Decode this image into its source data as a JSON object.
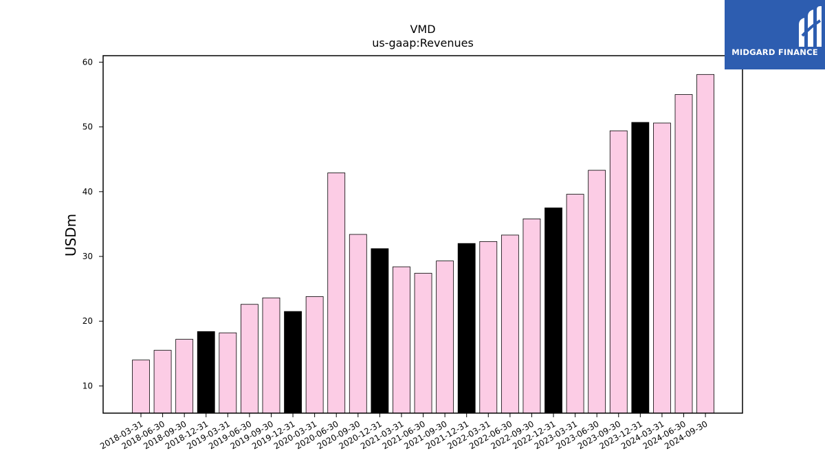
{
  "chart_data": {
    "type": "bar",
    "title": "VMD",
    "subtitle": "us-gaap:Revenues",
    "xlabel": "",
    "ylabel": "USDm",
    "ylim": [
      5.8,
      61
    ],
    "yticks": [
      10,
      20,
      30,
      40,
      50,
      60
    ],
    "categories": [
      "2018-03-31",
      "2018-06-30",
      "2018-09-30",
      "2018-12-31",
      "2019-03-31",
      "2019-06-30",
      "2019-09-30",
      "2019-12-31",
      "2020-03-31",
      "2020-06-30",
      "2020-09-30",
      "2020-12-31",
      "2021-03-31",
      "2021-06-30",
      "2021-09-30",
      "2021-12-31",
      "2022-03-31",
      "2022-06-30",
      "2022-09-30",
      "2022-12-31",
      "2023-03-31",
      "2023-06-30",
      "2023-09-30",
      "2023-12-31",
      "2024-03-31",
      "2024-06-30",
      "2024-09-30"
    ],
    "values": [
      14.0,
      15.5,
      17.2,
      18.4,
      18.2,
      22.6,
      23.6,
      21.5,
      23.8,
      42.9,
      33.4,
      31.2,
      28.4,
      27.4,
      29.3,
      32.0,
      32.3,
      33.3,
      35.8,
      37.5,
      39.6,
      43.3,
      49.4,
      50.7,
      50.6,
      55.0,
      58.1
    ],
    "highlight": [
      false,
      false,
      false,
      true,
      false,
      false,
      false,
      true,
      false,
      false,
      false,
      true,
      false,
      false,
      false,
      true,
      false,
      false,
      false,
      true,
      false,
      false,
      false,
      true,
      false,
      false,
      false
    ],
    "colors": {
      "bar": "#fccce5",
      "highlight": "#000000",
      "edge": "#000000"
    },
    "grid": false,
    "legend": "none"
  },
  "logo": {
    "text": "MIDGARD FINANCE",
    "background": "#2d5db0"
  }
}
